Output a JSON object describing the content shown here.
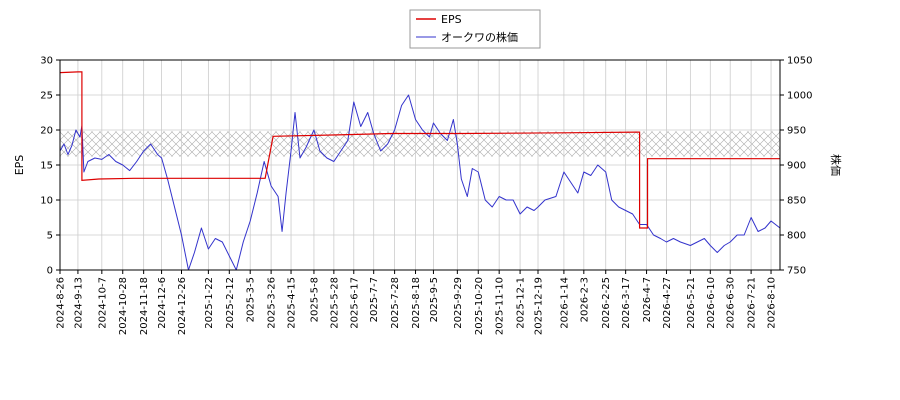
{
  "chart_data": {
    "type": "line",
    "title": "",
    "xlabel": "",
    "ylabel_left": "EPS",
    "ylabel_right": "株価",
    "ylim_left": [
      0,
      30
    ],
    "ylim_right": [
      750,
      1050
    ],
    "yticks_left": [
      "0",
      "5",
      "10",
      "15",
      "20",
      "25",
      "30"
    ],
    "yticks_right": [
      "750",
      "800",
      "850",
      "900",
      "950",
      "1000",
      "1050"
    ],
    "grid": true,
    "legend_position": "top-center",
    "colors": {
      "eps": "#dd0000",
      "price": "#3333cc"
    },
    "xlim": [
      "2024-08-26",
      "2026-08-19"
    ],
    "x_ticks": [
      "2024-8-26",
      "2024-9-13",
      "2024-10-7",
      "2024-10-28",
      "2024-11-18",
      "2024-12-6",
      "2024-12-26",
      "2025-1-22",
      "2025-2-12",
      "2025-3-5",
      "2025-3-26",
      "2025-4-15",
      "2025-5-8",
      "2025-5-28",
      "2025-6-17",
      "2025-7-7",
      "2025-7-28",
      "2025-8-18",
      "2025-9-5",
      "2025-9-29",
      "2025-10-20",
      "2025-11-10",
      "2025-12-1",
      "2025-12-19",
      "2026-1-14",
      "2026-2-3",
      "2026-2-25",
      "2026-3-17",
      "2026-4-7",
      "2026-4-27",
      "2026-5-21",
      "2026-6-10",
      "2026-6-30",
      "2026-7-21",
      "2026-8-10"
    ],
    "shaded_band_right": [
      912,
      948
    ],
    "series": [
      {
        "name": "EPS",
        "axis": "left",
        "points": [
          [
            "2024-08-26",
            28.2
          ],
          [
            "2024-09-13",
            28.3
          ],
          [
            "2024-09-17",
            28.3
          ],
          [
            "2024-09-17",
            12.8
          ],
          [
            "2024-10-04",
            13.0
          ],
          [
            "2024-11-08",
            13.1
          ],
          [
            "2025-03-20",
            13.1
          ],
          [
            "2025-03-28",
            19.1
          ],
          [
            "2025-06-01",
            19.3
          ],
          [
            "2025-07-25",
            19.5
          ],
          [
            "2025-10-01",
            19.5
          ],
          [
            "2026-01-14",
            19.6
          ],
          [
            "2026-03-31",
            19.7
          ],
          [
            "2026-03-31",
            6.0
          ],
          [
            "2026-04-08",
            6.0
          ],
          [
            "2026-04-08",
            15.9
          ],
          [
            "2026-08-19",
            15.9
          ]
        ]
      },
      {
        "name": "オークワの株価",
        "axis": "right",
        "points": [
          [
            "2024-08-26",
            920
          ],
          [
            "2024-08-30",
            930
          ],
          [
            "2024-09-03",
            915
          ],
          [
            "2024-09-07",
            928
          ],
          [
            "2024-09-11",
            950
          ],
          [
            "2024-09-15",
            940
          ],
          [
            "2024-09-17",
            956
          ],
          [
            "2024-09-19",
            890
          ],
          [
            "2024-09-23",
            905
          ],
          [
            "2024-09-30",
            910
          ],
          [
            "2024-10-07",
            908
          ],
          [
            "2024-10-14",
            915
          ],
          [
            "2024-10-21",
            905
          ],
          [
            "2024-10-28",
            900
          ],
          [
            "2024-11-04",
            892
          ],
          [
            "2024-11-11",
            905
          ],
          [
            "2024-11-18",
            920
          ],
          [
            "2024-11-25",
            930
          ],
          [
            "2024-12-02",
            915
          ],
          [
            "2024-12-06",
            910
          ],
          [
            "2024-12-12",
            880
          ],
          [
            "2024-12-19",
            840
          ],
          [
            "2024-12-26",
            800
          ],
          [
            "2025-01-02",
            750
          ],
          [
            "2025-01-08",
            775
          ],
          [
            "2025-01-15",
            810
          ],
          [
            "2025-01-22",
            780
          ],
          [
            "2025-01-29",
            795
          ],
          [
            "2025-02-05",
            790
          ],
          [
            "2025-02-12",
            770
          ],
          [
            "2025-02-19",
            750
          ],
          [
            "2025-02-26",
            790
          ],
          [
            "2025-03-05",
            820
          ],
          [
            "2025-03-12",
            860
          ],
          [
            "2025-03-19",
            905
          ],
          [
            "2025-03-26",
            870
          ],
          [
            "2025-04-02",
            855
          ],
          [
            "2025-04-06",
            805
          ],
          [
            "2025-04-10",
            860
          ],
          [
            "2025-04-15",
            920
          ],
          [
            "2025-04-19",
            975
          ],
          [
            "2025-04-24",
            910
          ],
          [
            "2025-04-30",
            925
          ],
          [
            "2025-05-08",
            950
          ],
          [
            "2025-05-14",
            920
          ],
          [
            "2025-05-21",
            910
          ],
          [
            "2025-05-28",
            905
          ],
          [
            "2025-06-04",
            920
          ],
          [
            "2025-06-11",
            935
          ],
          [
            "2025-06-17",
            990
          ],
          [
            "2025-06-24",
            955
          ],
          [
            "2025-07-01",
            975
          ],
          [
            "2025-07-07",
            945
          ],
          [
            "2025-07-14",
            920
          ],
          [
            "2025-07-21",
            930
          ],
          [
            "2025-07-28",
            950
          ],
          [
            "2025-08-04",
            985
          ],
          [
            "2025-08-11",
            1000
          ],
          [
            "2025-08-18",
            965
          ],
          [
            "2025-08-25",
            950
          ],
          [
            "2025-09-01",
            940
          ],
          [
            "2025-09-05",
            960
          ],
          [
            "2025-09-12",
            945
          ],
          [
            "2025-09-19",
            935
          ],
          [
            "2025-09-25",
            965
          ],
          [
            "2025-09-29",
            930
          ],
          [
            "2025-10-03",
            880
          ],
          [
            "2025-10-09",
            855
          ],
          [
            "2025-10-14",
            895
          ],
          [
            "2025-10-20",
            890
          ],
          [
            "2025-10-27",
            850
          ],
          [
            "2025-11-03",
            840
          ],
          [
            "2025-11-10",
            855
          ],
          [
            "2025-11-17",
            850
          ],
          [
            "2025-11-24",
            850
          ],
          [
            "2025-12-01",
            830
          ],
          [
            "2025-12-08",
            840
          ],
          [
            "2025-12-15",
            835
          ],
          [
            "2025-12-19",
            840
          ],
          [
            "2025-12-26",
            850
          ],
          [
            "2026-01-06",
            855
          ],
          [
            "2026-01-14",
            890
          ],
          [
            "2026-01-21",
            875
          ],
          [
            "2026-01-28",
            860
          ],
          [
            "2026-02-03",
            890
          ],
          [
            "2026-02-10",
            885
          ],
          [
            "2026-02-17",
            900
          ],
          [
            "2026-02-25",
            890
          ],
          [
            "2026-03-03",
            850
          ],
          [
            "2026-03-10",
            840
          ],
          [
            "2026-03-17",
            835
          ],
          [
            "2026-03-24",
            830
          ],
          [
            "2026-03-31",
            815
          ],
          [
            "2026-04-07",
            815
          ],
          [
            "2026-04-14",
            800
          ],
          [
            "2026-04-21",
            795
          ],
          [
            "2026-04-27",
            790
          ],
          [
            "2026-05-04",
            795
          ],
          [
            "2026-05-11",
            790
          ],
          [
            "2026-05-21",
            785
          ],
          [
            "2026-05-28",
            790
          ],
          [
            "2026-06-04",
            795
          ],
          [
            "2026-06-10",
            785
          ],
          [
            "2026-06-17",
            775
          ],
          [
            "2026-06-24",
            785
          ],
          [
            "2026-06-30",
            790
          ],
          [
            "2026-07-07",
            800
          ],
          [
            "2026-07-14",
            800
          ],
          [
            "2026-07-21",
            825
          ],
          [
            "2026-07-28",
            805
          ],
          [
            "2026-08-04",
            810
          ],
          [
            "2026-08-10",
            820
          ],
          [
            "2026-08-19",
            810
          ]
        ]
      }
    ]
  }
}
